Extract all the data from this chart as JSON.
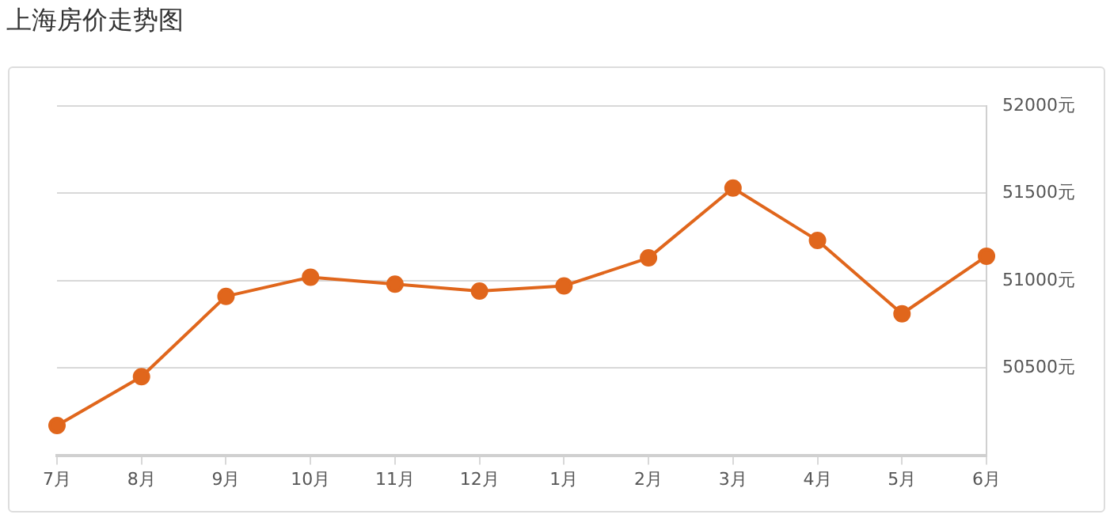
{
  "chart_data": {
    "type": "line",
    "title": "上海房价走势图",
    "categories": [
      "7月",
      "8月",
      "9月",
      "10月",
      "11月",
      "12月",
      "1月",
      "2月",
      "3月",
      "4月",
      "5月",
      "6月"
    ],
    "series": [
      {
        "color": "#e0661c",
        "values": [
          50170,
          50450,
          50910,
          51020,
          50980,
          50940,
          50970,
          51130,
          51530,
          51230,
          50810,
          51140
        ]
      }
    ],
    "ylim": [
      50000,
      52000
    ],
    "yticks": [
      {
        "value": 50000,
        "label": null
      },
      {
        "value": 50500,
        "label": "50500元"
      },
      {
        "value": 51000,
        "label": "51000元"
      },
      {
        "value": 51500,
        "label": "51500元"
      },
      {
        "value": 52000,
        "label": "52000元"
      }
    ],
    "grid": "y",
    "legend": false,
    "marker": "circle",
    "line_style": "solid"
  }
}
